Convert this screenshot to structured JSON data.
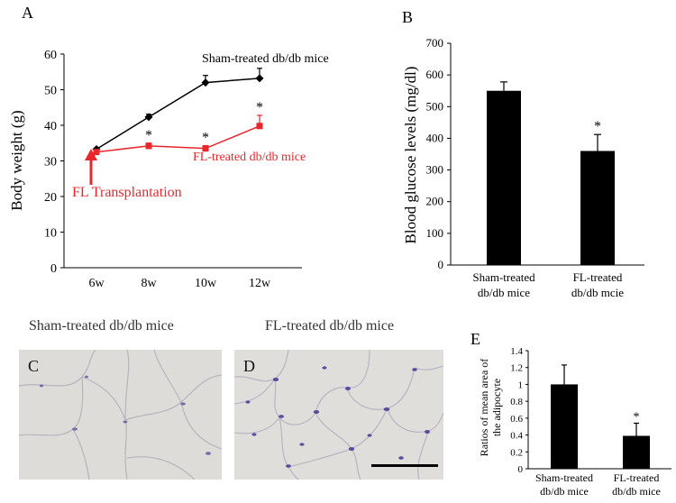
{
  "chart_data": [
    {
      "panel": "A",
      "type": "line",
      "xlabel": "",
      "ylabel": "Body weight (g)",
      "categories": [
        "6w",
        "8w",
        "10w",
        "12w"
      ],
      "ylim": [
        0,
        60
      ],
      "yticks": [
        0,
        10,
        20,
        30,
        40,
        50,
        60
      ],
      "series": [
        {
          "name": "Sham-treated db/db mice",
          "color": "#000000",
          "values": [
            33.3,
            42.3,
            52.0,
            53.2
          ],
          "errors": [
            0.5,
            0.8,
            2.0,
            2.8
          ],
          "significance": [
            "",
            "",
            "",
            ""
          ]
        },
        {
          "name": "FL-treated db/db mice",
          "color": "#e8272b",
          "values": [
            32.5,
            34.2,
            33.5,
            39.8
          ],
          "errors": [
            0.4,
            0.8,
            0.8,
            3.0
          ],
          "significance": [
            "",
            "*",
            "*",
            "*"
          ]
        }
      ],
      "annotation": {
        "text": "FL  Transplantation",
        "color": "#e8272b"
      }
    },
    {
      "panel": "B",
      "type": "bar",
      "xlabel": "",
      "ylabel": "Blood glucose levels (mg/dl)",
      "categories": [
        [
          "Sham-treated",
          "db/db mice"
        ],
        [
          "FL-treated",
          "db/db mcie"
        ]
      ],
      "values": [
        550,
        360
      ],
      "errors": [
        28,
        52
      ],
      "significance": [
        "",
        "*"
      ],
      "ylim": [
        0,
        700
      ],
      "yticks": [
        0,
        100,
        200,
        300,
        400,
        500,
        600,
        700
      ]
    },
    {
      "panel": "E",
      "type": "bar",
      "xlabel": "",
      "ylabel": [
        "Ratios of mean area of",
        "the adipocyte"
      ],
      "categories": [
        [
          "Sham-treated",
          "db/db mice"
        ],
        [
          "FL-treated",
          "db/db mice"
        ]
      ],
      "values": [
        1.0,
        0.39
      ],
      "errors": [
        0.23,
        0.15
      ],
      "significance": [
        "",
        "*"
      ],
      "ylim": [
        0,
        1.4
      ],
      "yticks": [
        "0",
        "0.2",
        "0.4",
        "0.6",
        "0.8",
        "1",
        "1.2",
        "1.4"
      ]
    }
  ],
  "micrographs": {
    "C": {
      "letter": "C",
      "caption": "Sham-treated db/db mice"
    },
    "D": {
      "letter": "D",
      "caption": "FL-treated db/db mice"
    }
  },
  "colors": {
    "red": "#e8272b",
    "tissue_bg": "#dddcd9",
    "nuclei": "#6b5aa3"
  }
}
